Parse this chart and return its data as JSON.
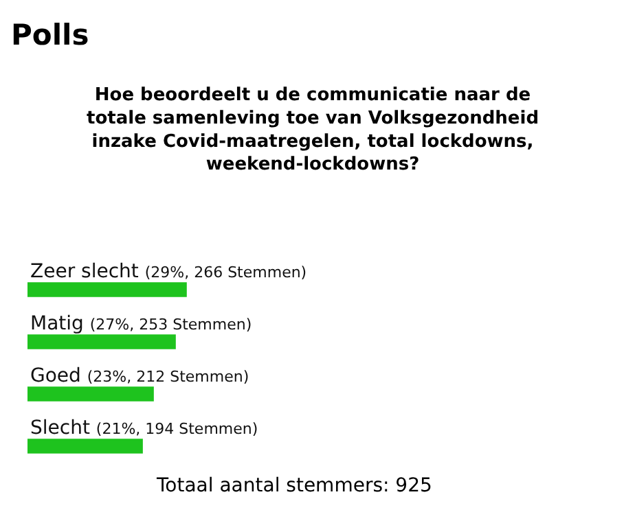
{
  "chart_data": {
    "type": "bar",
    "orientation": "horizontal",
    "title": "Polls",
    "subtitle": "Hoe beoordeelt u de communicatie naar de totale samenleving toe van Volksgezondheid inzake Covid-maatregelen, total lockdowns, weekend-lockdowns?",
    "categories": [
      "Zeer slecht",
      "Matig",
      "Goed",
      "Slecht"
    ],
    "values": [
      29,
      27,
      23,
      21
    ],
    "value_labels": [
      "(29%, 266 Stemmen)",
      "(27%, 253 Stemmen)",
      "(23%, 212 Stemmen)",
      "(21%, 194 Stemmen)"
    ],
    "color": "#1ec31e",
    "tick_labels": false,
    "annotations": [
      "Totaal aantal stemmers: 925"
    ]
  }
}
